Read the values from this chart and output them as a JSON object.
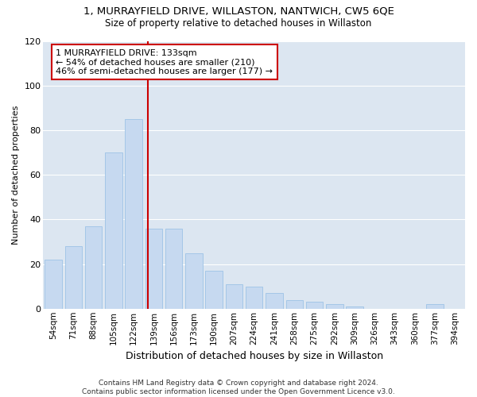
{
  "title": "1, MURRAYFIELD DRIVE, WILLASTON, NANTWICH, CW5 6QE",
  "subtitle": "Size of property relative to detached houses in Willaston",
  "xlabel": "Distribution of detached houses by size in Willaston",
  "ylabel": "Number of detached properties",
  "footer_line1": "Contains HM Land Registry data © Crown copyright and database right 2024.",
  "footer_line2": "Contains public sector information licensed under the Open Government Licence v3.0.",
  "categories": [
    "54sqm",
    "71sqm",
    "88sqm",
    "105sqm",
    "122sqm",
    "139sqm",
    "156sqm",
    "173sqm",
    "190sqm",
    "207sqm",
    "224sqm",
    "241sqm",
    "258sqm",
    "275sqm",
    "292sqm",
    "309sqm",
    "326sqm",
    "343sqm",
    "360sqm",
    "377sqm",
    "394sqm"
  ],
  "values": [
    22,
    28,
    37,
    70,
    85,
    36,
    36,
    25,
    17,
    11,
    10,
    7,
    4,
    3,
    2,
    1,
    0,
    0,
    0,
    2,
    0
  ],
  "bar_color": "#c6d9f0",
  "bar_edgecolor": "#9dc3e6",
  "grid_color": "#ffffff",
  "bg_color": "#dce6f1",
  "property_line_color": "#cc0000",
  "annotation_text": "1 MURRAYFIELD DRIVE: 133sqm\n← 54% of detached houses are smaller (210)\n46% of semi-detached houses are larger (177) →",
  "annotation_box_color": "#cc0000",
  "ylim": [
    0,
    120
  ],
  "yticks": [
    0,
    20,
    40,
    60,
    80,
    100,
    120
  ],
  "figsize": [
    6.0,
    5.0
  ],
  "dpi": 100
}
